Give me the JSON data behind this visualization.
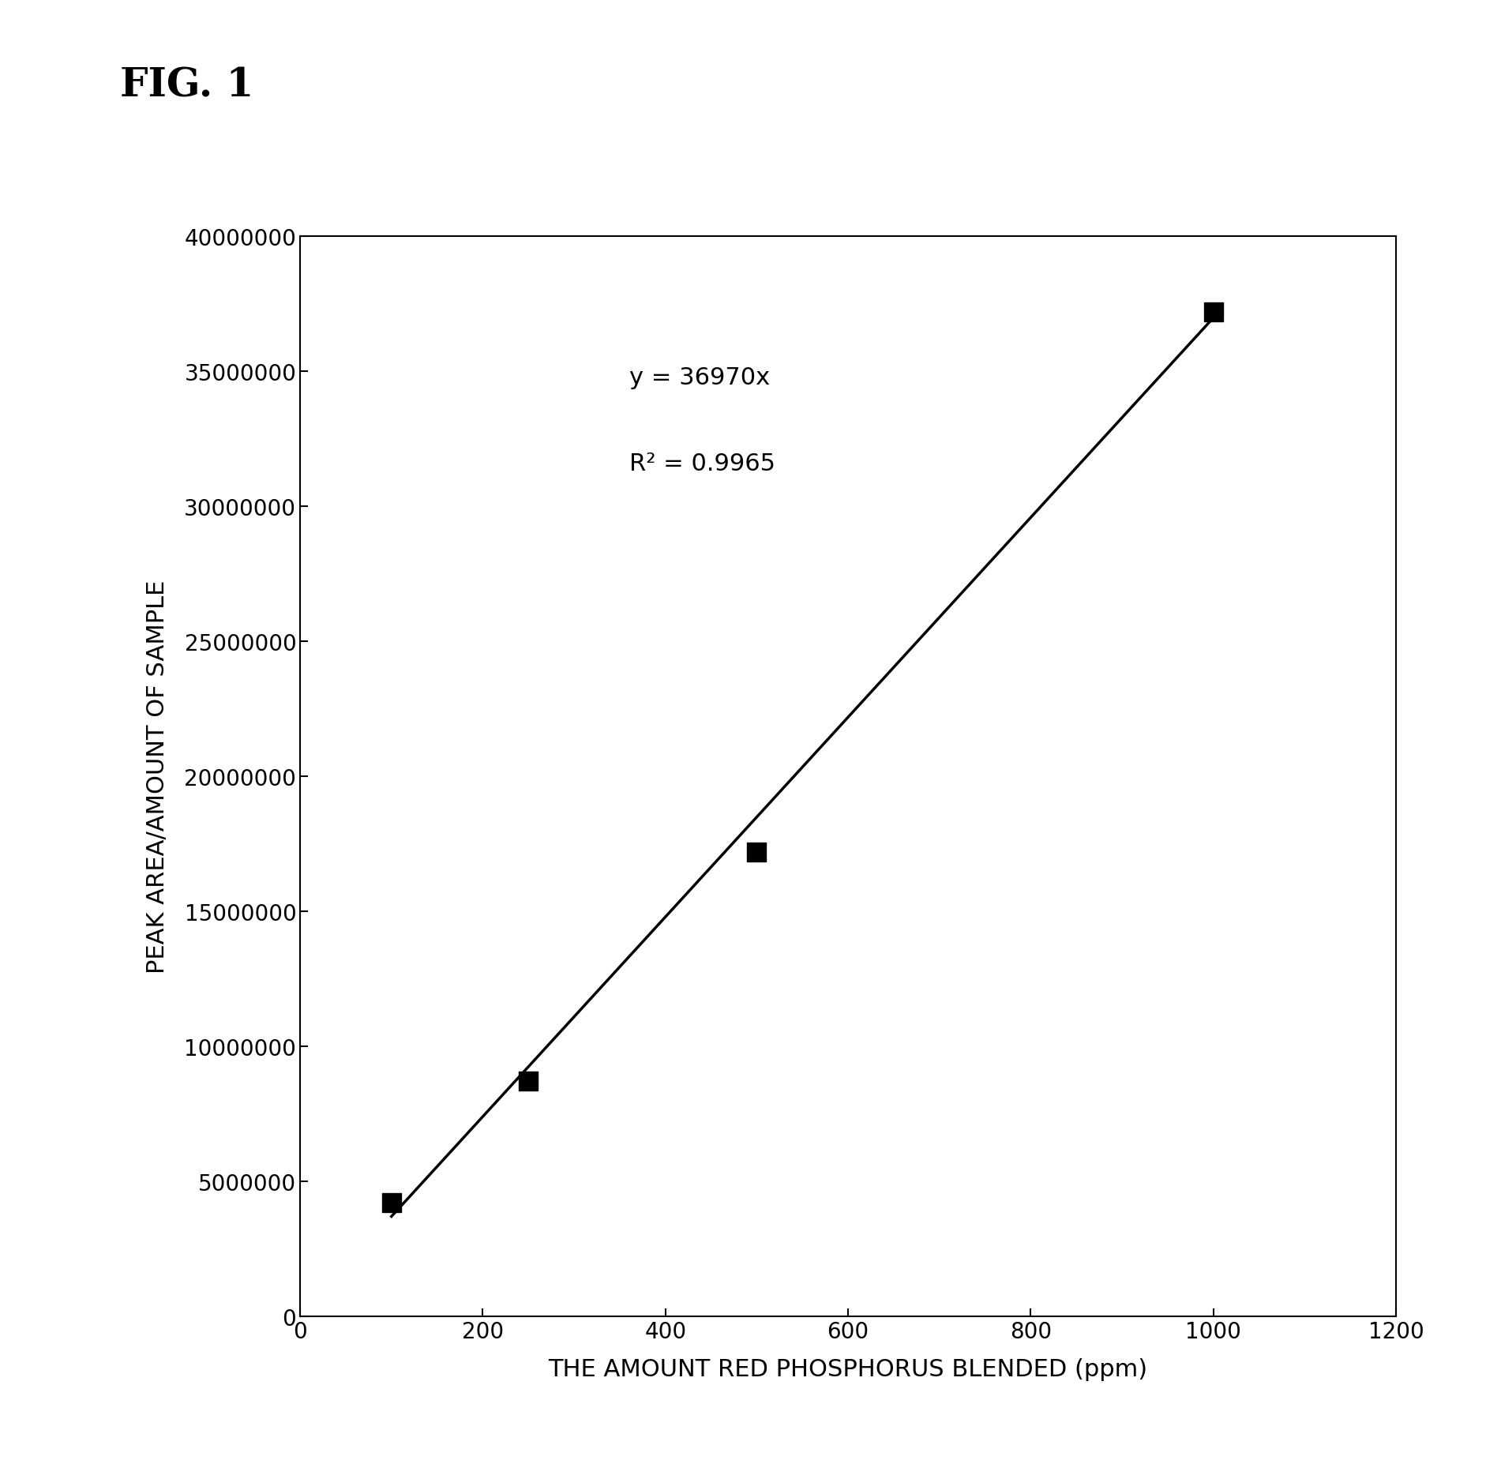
{
  "title": "FIG. 1",
  "xlabel": "THE AMOUNT RED PHOSPHORUS BLENDED (ppm)",
  "ylabel": "PEAK AREA/AMOUNT OF SAMPLE",
  "x_data": [
    100,
    250,
    500,
    1000
  ],
  "y_data": [
    4200000,
    8700000,
    17200000,
    37200000
  ],
  "slope": 36970,
  "r_squared": 0.9965,
  "xlim": [
    0,
    1200
  ],
  "ylim": [
    0,
    40000000
  ],
  "xticks": [
    0,
    200,
    400,
    600,
    800,
    1000,
    1200
  ],
  "yticks": [
    0,
    5000000,
    10000000,
    15000000,
    20000000,
    25000000,
    30000000,
    35000000,
    40000000
  ],
  "annotation_line1": "y = 36970x",
  "annotation_line2": "R² = 0.9965",
  "marker_color": "#000000",
  "line_color": "#000000",
  "background_color": "#ffffff",
  "fig_width": 19.01,
  "fig_height": 18.74,
  "title_fontsize": 36,
  "label_fontsize": 22,
  "tick_fontsize": 20,
  "annotation_fontsize": 22,
  "line_x_start": 100,
  "line_x_end": 1000
}
